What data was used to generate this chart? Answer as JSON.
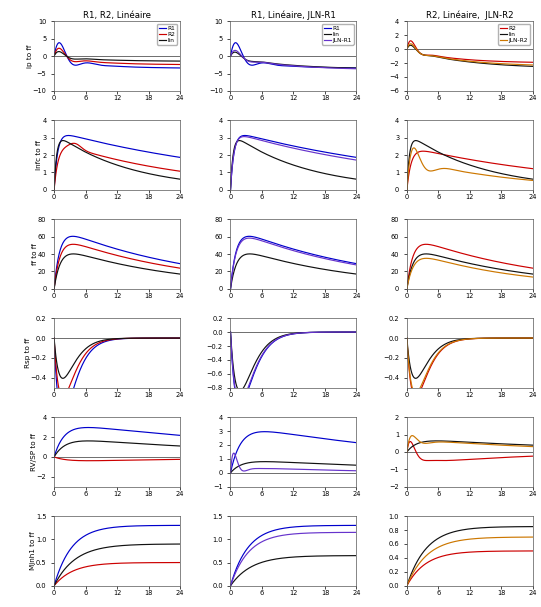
{
  "col_titles": [
    "R1, R2, Linéaire",
    "R1, Linéaire, JLN-R1",
    "R2, Linéaire,  JLN-R2"
  ],
  "row_labels": [
    "ip to ff",
    "Infc to ff",
    "ff to ff",
    "Rsp to ff",
    "RV/SP to ff",
    "Mjnh1 to ff"
  ],
  "col1_legend": [
    "R1",
    "R2",
    "lin"
  ],
  "col2_legend": [
    "R1",
    "lin",
    "JLN-R1"
  ],
  "col3_legend": [
    "R2",
    "lin",
    "JLN-R2"
  ],
  "col1_colors": [
    "#0000cc",
    "#cc0000",
    "#111111"
  ],
  "col2_colors": [
    "#0000cc",
    "#111111",
    "#6633cc"
  ],
  "col3_colors": [
    "#cc0000",
    "#111111",
    "#cc7700"
  ],
  "x_ticks": [
    0,
    6,
    12,
    18,
    24
  ],
  "background": "white"
}
